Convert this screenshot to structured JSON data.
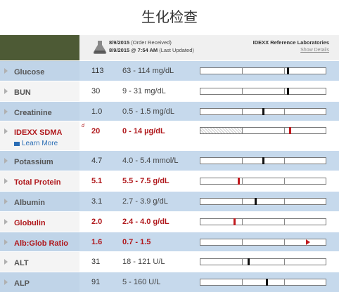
{
  "page": {
    "title": "生化检查"
  },
  "header": {
    "received_date": "8/9/2015",
    "received_label": "(Order Received)",
    "updated_date": "8/9/2015 @ 7:54 AM",
    "updated_label": "(Last Updated)",
    "lab_name": "IDEXX Reference Laboratories",
    "show_details": "Show Details"
  },
  "rows": [
    {
      "name": "Glucose",
      "value": "113",
      "range": "63 - 114 mg/dL",
      "level": 0.7,
      "abnormal": false
    },
    {
      "name": "BUN",
      "value": "30",
      "range": "9 - 31 mg/dL",
      "level": 0.7,
      "abnormal": false
    },
    {
      "name": "Creatinine",
      "value": "1.0",
      "range": "0.5 - 1.5 mg/dL",
      "level": 0.5,
      "abnormal": false
    },
    {
      "name": "IDEXX SDMA",
      "flag": "d",
      "learn_more": "Learn More",
      "value": "20",
      "range": "0 - 14 µg/dL",
      "level": 0.72,
      "abnormal": true
    },
    {
      "name": "Potassium",
      "value": "4.7",
      "range": "4.0 - 5.4 mmol/L",
      "level": 0.5,
      "abnormal": false
    },
    {
      "name": "Total Protein",
      "value": "5.1",
      "range": "5.5 - 7.5 g/dL",
      "level": 0.3,
      "abnormal": true
    },
    {
      "name": "Albumin",
      "value": "3.1",
      "range": "2.7 - 3.9 g/dL",
      "level": 0.44,
      "abnormal": false
    },
    {
      "name": "Globulin",
      "value": "2.0",
      "range": "2.4 - 4.0 g/dL",
      "level": 0.27,
      "abnormal": true
    },
    {
      "name": "Alb:Glob Ratio",
      "value": "1.6",
      "range": "0.7 - 1.5",
      "level": 1.0,
      "abnormal": true,
      "over": true
    },
    {
      "name": "ALT",
      "value": "31",
      "range": "18 - 121 U/L",
      "level": 0.38,
      "abnormal": false
    },
    {
      "name": "ALP",
      "value": "91",
      "range": "5 - 160 U/L",
      "level": 0.53,
      "abnormal": false
    }
  ]
}
